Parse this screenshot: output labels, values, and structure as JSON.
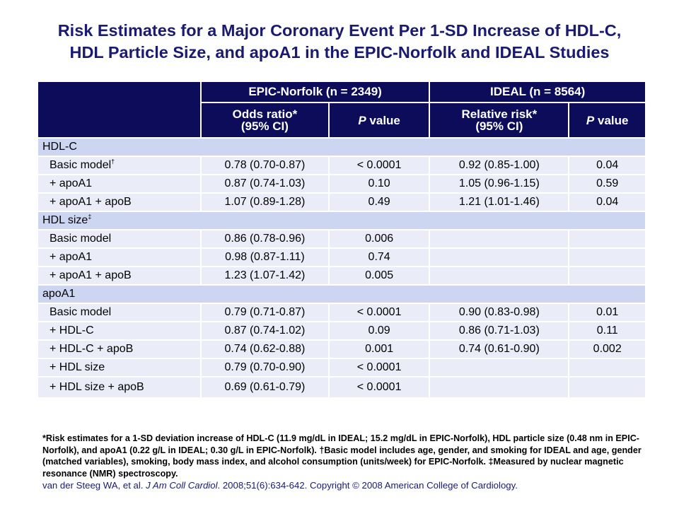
{
  "title": {
    "line1": "Risk Estimates for a Major Coronary Event Per 1-SD Increase of HDL-C,",
    "line2": "HDL Particle Size, and apoA1 in the EPIC-Norfolk and IDEAL Studies"
  },
  "table": {
    "group_headers": [
      "EPIC-Norfolk (n = 2349)",
      "IDEAL (n = 8564)"
    ],
    "sub_headers": {
      "odds_ratio_l1": "Odds ratio*",
      "odds_ratio_l2": "(95% CI)",
      "p_value_p": "P",
      "p_value_rest": " value",
      "relative_risk_l1": "Relative risk*",
      "relative_risk_l2": "(95% CI)"
    },
    "sections": [
      {
        "name": "HDL-C",
        "sup": "",
        "rows": [
          {
            "label": "Basic model",
            "sup": "†",
            "or": "0.78 (0.70-0.87)",
            "p1": "< 0.0001",
            "rr": "0.92 (0.85-1.00)",
            "p2": "0.04"
          },
          {
            "label": "+ apoA1",
            "sup": "",
            "or": "0.87 (0.74-1.03)",
            "p1": "0.10",
            "rr": "1.05 (0.96-1.15)",
            "p2": "0.59"
          },
          {
            "label": "+ apoA1 + apoB",
            "sup": "",
            "or": "1.07 (0.89-1.28)",
            "p1": "0.49",
            "rr": "1.21 (1.01-1.46)",
            "p2": "0.04"
          }
        ]
      },
      {
        "name": "HDL size",
        "sup": "‡",
        "rows": [
          {
            "label": "Basic model",
            "sup": "",
            "or": "0.86 (0.78-0.96)",
            "p1": "0.006",
            "rr": "",
            "p2": ""
          },
          {
            "label": "+ apoA1",
            "sup": "",
            "or": "0.98 (0.87-1.11)",
            "p1": "0.74",
            "rr": "",
            "p2": ""
          },
          {
            "label": "+ apoA1 + apoB",
            "sup": "",
            "or": "1.23 (1.07-1.42)",
            "p1": "0.005",
            "rr": "",
            "p2": ""
          }
        ]
      },
      {
        "name": "apoA1",
        "sup": "",
        "rows": [
          {
            "label": "Basic model",
            "sup": "",
            "or": "0.79 (0.71-0.87)",
            "p1": "< 0.0001",
            "rr": "0.90 (0.83-0.98)",
            "p2": "0.01"
          },
          {
            "label": "+ HDL-C",
            "sup": "",
            "or": "0.87 (0.74-1.02)",
            "p1": "0.09",
            "rr": "0.86 (0.71-1.03)",
            "p2": "0.11"
          },
          {
            "label": "+ HDL-C + apoB",
            "sup": "",
            "or": "0.74 (0.62-0.88)",
            "p1": "0.001",
            "rr": "0.74 (0.61-0.90)",
            "p2": "0.002"
          },
          {
            "label": "+ HDL size",
            "sup": "",
            "or": "0.79 (0.70-0.90)",
            "p1": "< 0.0001",
            "rr": "",
            "p2": ""
          },
          {
            "label": "+ HDL size + apoB",
            "sup": "",
            "or": "0.69 (0.61-0.79)",
            "p1": "< 0.0001",
            "rr": "",
            "p2": ""
          }
        ]
      }
    ]
  },
  "footnote": "*Risk estimates for a 1-SD deviation increase of HDL-C (11.9 mg/dL in IDEAL; 15.2 mg/dL in EPIC-Norfolk), HDL particle size (0.48 nm in EPIC-Norfolk), and apoA1 (0.22 g/L in IDEAL; 0.30 g/L in EPIC-Norfolk). †Basic model includes age, gender, and smoking for IDEAL and age, gender (matched variables), smoking, body mass index, and alcohol consumption (units/week) for EPIC-Norfolk. ‡Measured by nuclear magnetic resonance (NMR) spectroscopy.",
  "citation": {
    "authors": "van der Steeg WA, et al. ",
    "journal": "J Am Coll Cardiol",
    "rest": ". 2008;51(6):634-642. Copyright © 2008 American College of Cardiology."
  }
}
